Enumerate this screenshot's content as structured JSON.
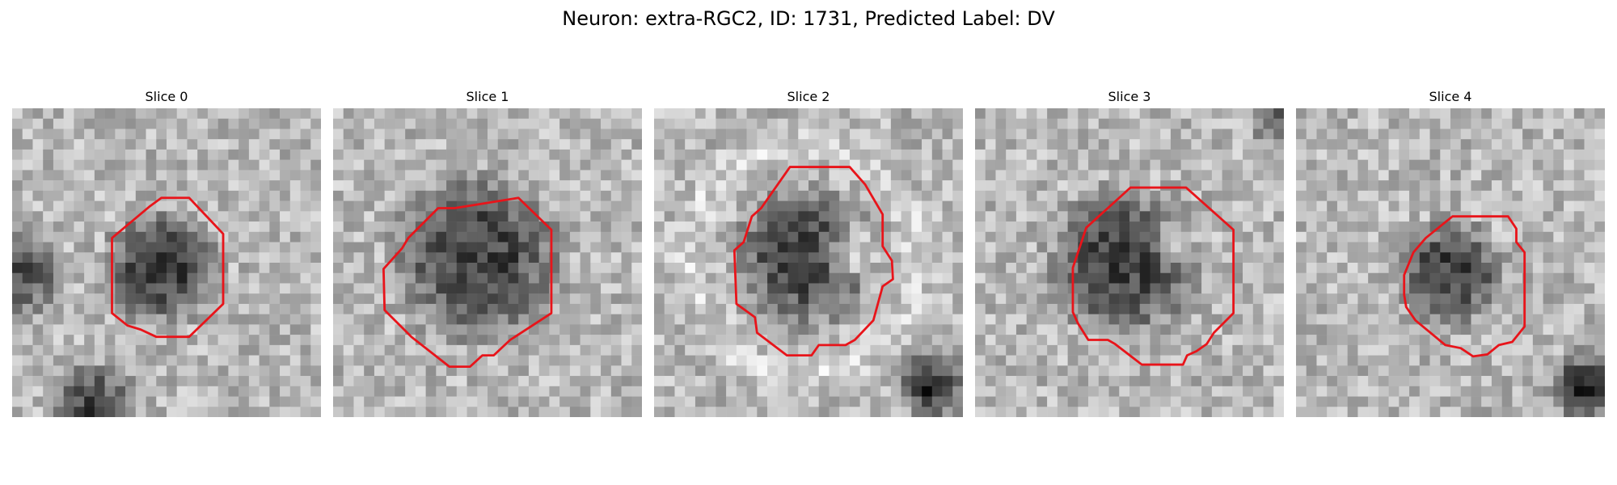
{
  "figure": {
    "title": "Neuron: extra-RGC2, ID: 1731, Predicted Label: DV"
  },
  "panels": [
    {
      "title": "Slice 0"
    },
    {
      "title": "Slice 1"
    },
    {
      "title": "Slice 2"
    },
    {
      "title": "Slice 3"
    },
    {
      "title": "Slice 4"
    }
  ],
  "colors": {
    "contour": "#e8141a",
    "colormap": "gray"
  }
}
